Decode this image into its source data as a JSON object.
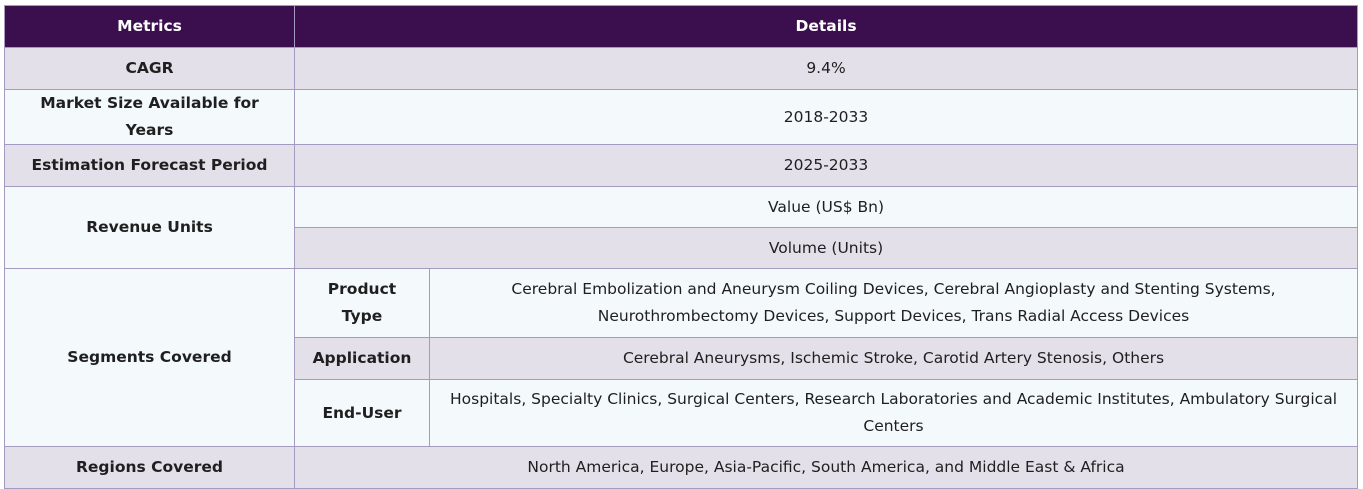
{
  "header": {
    "metrics": "Metrics",
    "details": "Details"
  },
  "rows": {
    "cagr": {
      "label": "CAGR",
      "value": "9.4%"
    },
    "market_size": {
      "label": "Market Size Available for Years",
      "value": "2018-2033"
    },
    "forecast": {
      "label": "Estimation Forecast Period",
      "value": "2025-2033"
    },
    "revenue_units": {
      "label": "Revenue Units",
      "values": [
        "Value (US$ Bn)",
        "Volume (Units)"
      ]
    },
    "segments": {
      "label": "Segments Covered",
      "items": [
        {
          "name": "Product Type",
          "value": "Cerebral Embolization and Aneurysm Coiling Devices, Cerebral Angioplasty and Stenting Systems, Neurothrombectomy Devices, Support Devices, Trans Radial Access Devices"
        },
        {
          "name": "Application",
          "value": "Cerebral Aneurysms, Ischemic Stroke, Carotid Artery Stenosis, Others"
        },
        {
          "name": "End-User",
          "value": "Hospitals, Specialty Clinics, Surgical Centers, Research Laboratories and Academic Institutes, Ambulatory Surgical Centers"
        }
      ]
    },
    "regions": {
      "label": "Regions Covered",
      "value": "North America, Europe, Asia-Pacific, South America, and Middle East & Africa"
    }
  }
}
